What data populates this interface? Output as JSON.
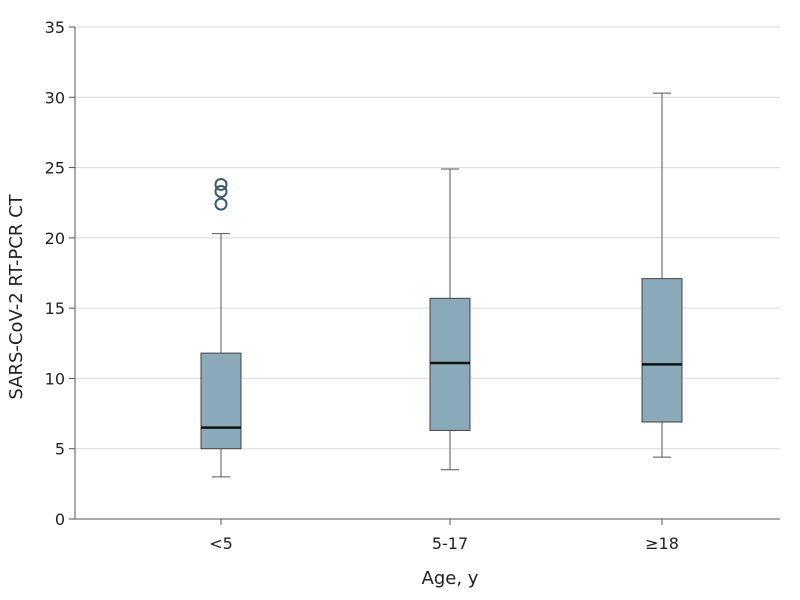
{
  "chart_data": {
    "type": "box",
    "title": "",
    "xlabel": "Age, y",
    "ylabel": "SARS-CoV-2 RT-PCR CT",
    "ylim": [
      0,
      35
    ],
    "yticks": [
      0,
      5,
      10,
      15,
      20,
      25,
      30,
      35
    ],
    "grid": "horizontal",
    "colors": {
      "box": "#8aa9b9",
      "outlier": "#3a5a6b",
      "grid": "#d9d9d9",
      "axis": "#555555"
    },
    "categories": [
      "<5",
      "5-17",
      "≥18"
    ],
    "boxes": [
      {
        "category": "<5",
        "min": 3.0,
        "q1": 5.0,
        "median": 6.5,
        "q3": 11.8,
        "max": 20.3,
        "outliers": [
          22.4,
          23.3,
          23.8
        ]
      },
      {
        "category": "5-17",
        "min": 3.5,
        "q1": 6.3,
        "median": 11.1,
        "q3": 15.7,
        "max": 24.9,
        "outliers": []
      },
      {
        "category": "≥18",
        "min": 4.4,
        "q1": 6.9,
        "median": 11.0,
        "q3": 17.1,
        "max": 30.3,
        "outliers": []
      }
    ]
  }
}
